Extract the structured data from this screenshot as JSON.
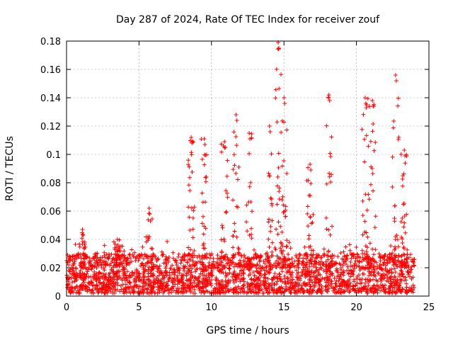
{
  "chart_data": {
    "type": "scatter",
    "title": "Day 287 of 2024, Rate Of TEC Index for receiver zouf",
    "xlabel": "GPS time / hours",
    "ylabel": "ROTI / TECUs",
    "xlim": [
      0,
      25
    ],
    "ylim": [
      0,
      0.18
    ],
    "x_ticks": [
      0,
      5,
      10,
      15,
      20,
      25
    ],
    "y_ticks": [
      0,
      0.02,
      0.04,
      0.06,
      0.08,
      0.1,
      0.12,
      0.14,
      0.16,
      0.18
    ],
    "x_tick_labels": [
      "0",
      "5",
      "10",
      "15",
      "20",
      "25"
    ],
    "y_tick_labels": [
      "0",
      "0.02",
      "0.04",
      "0.06",
      "0.08",
      "0.1",
      "0.12",
      "0.14",
      "0.16",
      "0.18"
    ],
    "grid": true,
    "marker": "+",
    "color": "#ff0000",
    "series": [
      {
        "name": "ROTI",
        "x_range": [
          0,
          24
        ],
        "baseline_range": [
          0.002,
          0.03
        ],
        "spikes": [
          {
            "x": 1.1,
            "y": 0.047
          },
          {
            "x": 3.5,
            "y": 0.04
          },
          {
            "x": 5.7,
            "y": 0.062
          },
          {
            "x": 8.6,
            "y": 0.112
          },
          {
            "x": 9.5,
            "y": 0.111
          },
          {
            "x": 10.9,
            "y": 0.109
          },
          {
            "x": 11.7,
            "y": 0.128
          },
          {
            "x": 12.6,
            "y": 0.115
          },
          {
            "x": 14.0,
            "y": 0.12
          },
          {
            "x": 14.6,
            "y": 0.179
          },
          {
            "x": 15.0,
            "y": 0.14
          },
          {
            "x": 16.8,
            "y": 0.093
          },
          {
            "x": 18.1,
            "y": 0.142
          },
          {
            "x": 20.6,
            "y": 0.14
          },
          {
            "x": 21.1,
            "y": 0.138
          },
          {
            "x": 22.7,
            "y": 0.156
          },
          {
            "x": 23.3,
            "y": 0.103
          }
        ]
      }
    ]
  }
}
